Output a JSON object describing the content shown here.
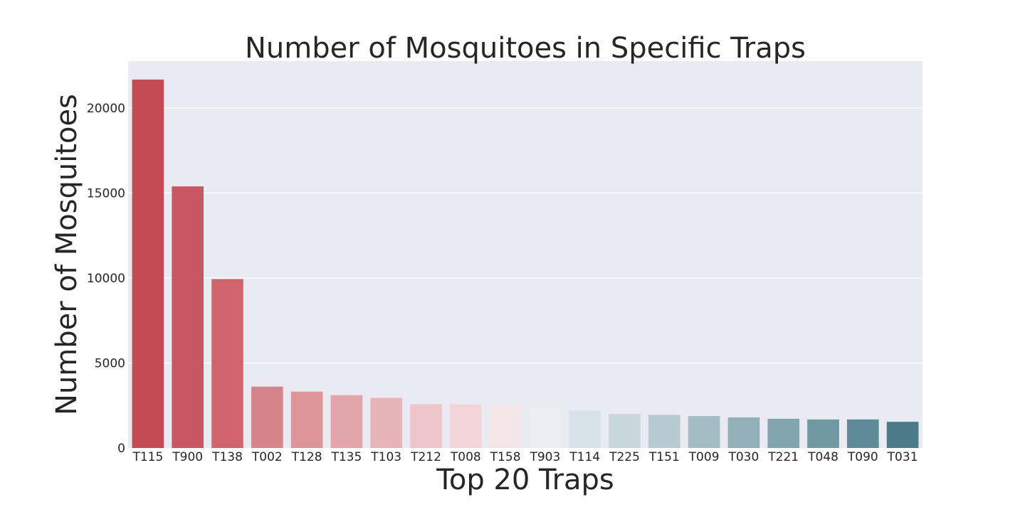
{
  "chart_data": {
    "type": "bar",
    "title": "Number of Mosquitoes in Specific Traps",
    "xlabel": "Top 20 Traps",
    "ylabel": "Number of Mosquitoes",
    "categories": [
      "T115",
      "T900",
      "T138",
      "T002",
      "T128",
      "T135",
      "T103",
      "T212",
      "T008",
      "T158",
      "T903",
      "T114",
      "T225",
      "T151",
      "T009",
      "T030",
      "T221",
      "T048",
      "T090",
      "T031"
    ],
    "values": [
      21668,
      15386,
      9936,
      3610,
      3315,
      3108,
      2949,
      2571,
      2571,
      2550,
      2350,
      2200,
      2000,
      1950,
      1880,
      1800,
      1720,
      1680,
      1680,
      1540
    ],
    "ylim": [
      0,
      22750
    ],
    "yticks": [
      0,
      5000,
      10000,
      15000,
      20000
    ],
    "grid": true,
    "legend": "none",
    "colors": [
      "#c44a53",
      "#c95761",
      "#d0656d",
      "#d7838a",
      "#dd959a",
      "#e2a6aa",
      "#e7b5b9",
      "#ecc6c8",
      "#f1d5d8",
      "#f4e5e8",
      "#eaeef2",
      "#d8e3e8",
      "#c7d7dc",
      "#b7cacf",
      "#a4bcc3",
      "#93b0b8",
      "#82a5ad",
      "#6f98a2",
      "#5e8b95",
      "#4a7b87"
    ]
  }
}
